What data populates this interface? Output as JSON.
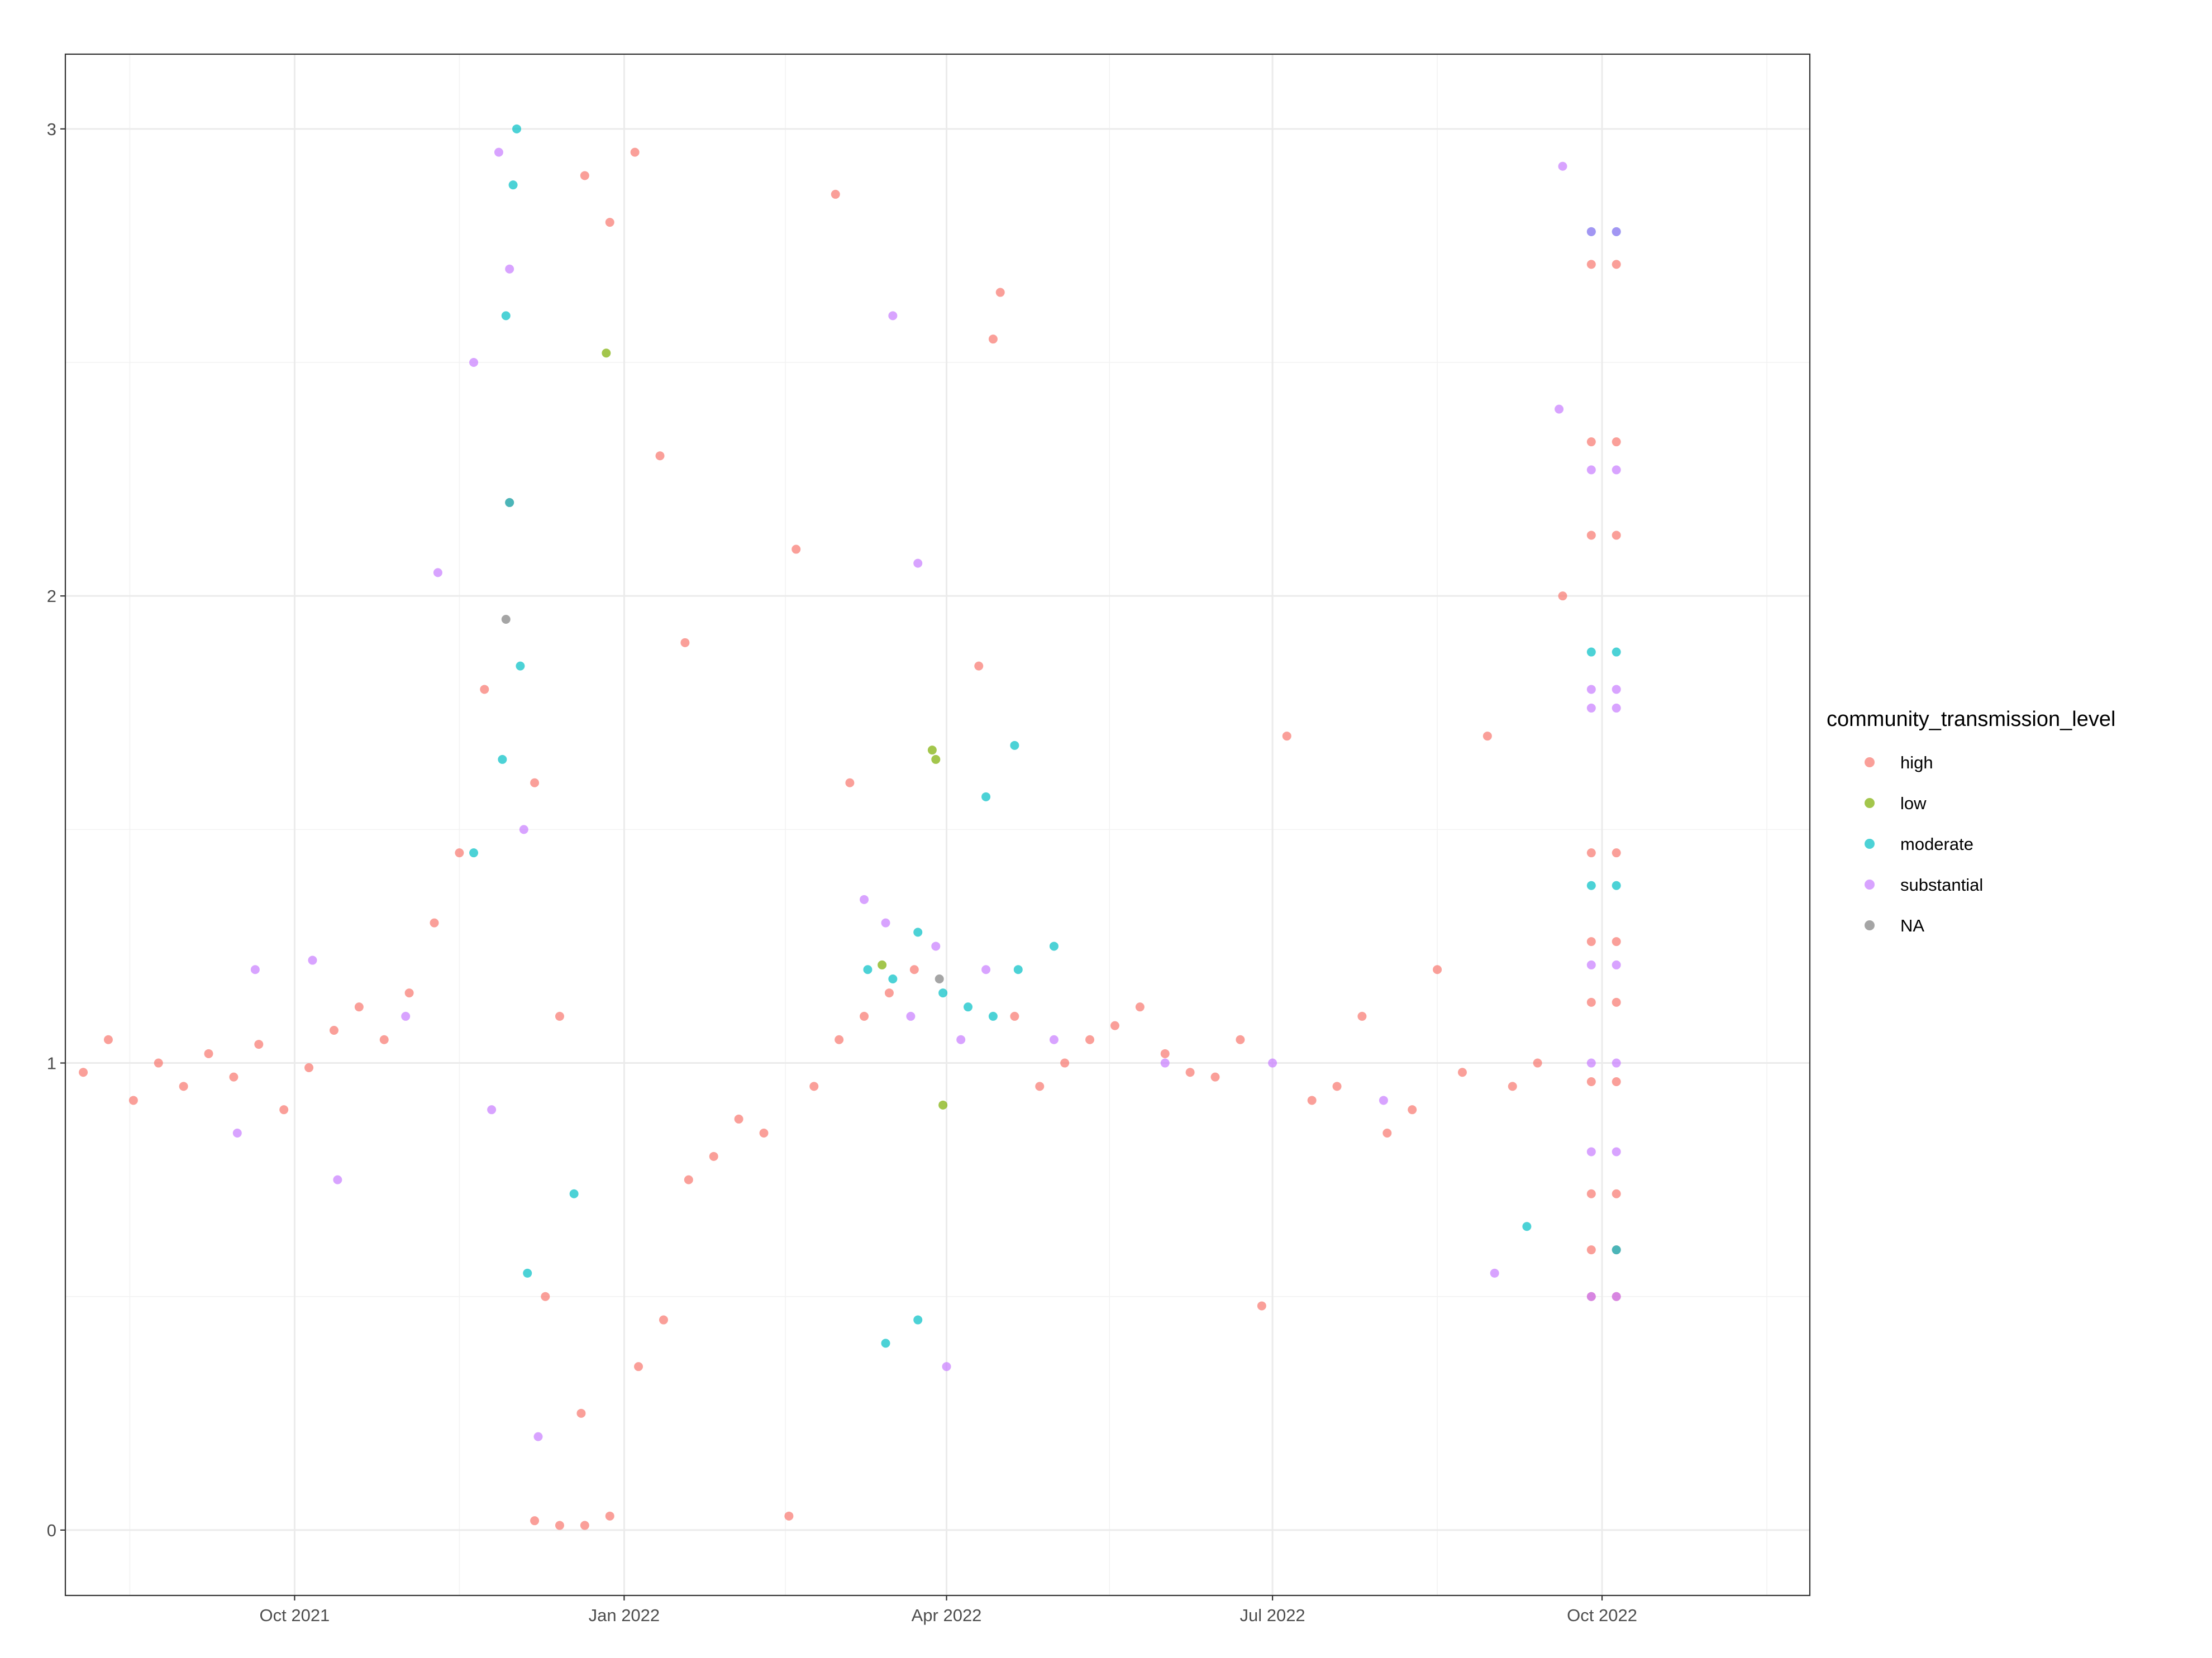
{
  "chart_data": {
    "type": "scatter",
    "title": "",
    "xlabel": "",
    "ylabel": "",
    "xlim": [
      "2021-07-29",
      "2022-11-28"
    ],
    "ylim": [
      -0.14,
      3.16
    ],
    "grid": true,
    "legend_position": "right",
    "x_ticks": [
      {
        "value": "2021-10-01",
        "label": "Oct 2021"
      },
      {
        "value": "2022-01-01",
        "label": "Jan 2022"
      },
      {
        "value": "2022-04-01",
        "label": "Apr 2022"
      },
      {
        "value": "2022-07-01",
        "label": "Jul 2022"
      },
      {
        "value": "2022-10-01",
        "label": "Oct 2022"
      }
    ],
    "y_ticks": [
      {
        "value": 0,
        "label": "0"
      },
      {
        "value": 1,
        "label": "1"
      },
      {
        "value": 2,
        "label": "2"
      },
      {
        "value": 3,
        "label": "3"
      }
    ],
    "legend": {
      "title": "community_transmission_level",
      "entries": [
        {
          "label": "high",
          "color": "#F8766D"
        },
        {
          "label": "low",
          "color": "#7CAE00"
        },
        {
          "label": "moderate",
          "color": "#00BFC4"
        },
        {
          "label": "substantial",
          "color": "#C77CFF"
        },
        {
          "label": "NA",
          "color": "#7F7F7F"
        }
      ]
    },
    "series": [
      {
        "name": "high",
        "color": "#F8766D",
        "points": [
          [
            "2021-08-03",
            0.98
          ],
          [
            "2021-08-10",
            1.05
          ],
          [
            "2021-08-17",
            0.92
          ],
          [
            "2021-08-24",
            1.0
          ],
          [
            "2021-08-31",
            0.95
          ],
          [
            "2021-09-07",
            1.02
          ],
          [
            "2021-09-14",
            0.97
          ],
          [
            "2021-09-21",
            1.04
          ],
          [
            "2021-09-28",
            0.9
          ],
          [
            "2021-10-05",
            0.99
          ],
          [
            "2021-10-12",
            1.07
          ],
          [
            "2021-10-19",
            1.12
          ],
          [
            "2021-10-26",
            1.05
          ],
          [
            "2021-11-02",
            1.15
          ],
          [
            "2021-11-09",
            1.3
          ],
          [
            "2021-11-16",
            1.45
          ],
          [
            "2021-11-23",
            1.8
          ],
          [
            "2021-11-30",
            2.2
          ],
          [
            "2021-12-07",
            1.6
          ],
          [
            "2021-12-14",
            1.1
          ],
          [
            "2021-12-21",
            2.9
          ],
          [
            "2021-12-28",
            2.8
          ],
          [
            "2022-01-04",
            2.95
          ],
          [
            "2022-01-11",
            2.3
          ],
          [
            "2022-01-18",
            1.9
          ],
          [
            "2021-12-07",
            0.02
          ],
          [
            "2021-12-14",
            0.01
          ],
          [
            "2021-12-21",
            0.01
          ],
          [
            "2021-12-28",
            0.03
          ],
          [
            "2021-12-10",
            0.5
          ],
          [
            "2021-12-20",
            0.25
          ],
          [
            "2022-01-05",
            0.35
          ],
          [
            "2022-01-12",
            0.45
          ],
          [
            "2022-01-19",
            0.75
          ],
          [
            "2022-01-26",
            0.8
          ],
          [
            "2022-02-02",
            0.88
          ],
          [
            "2022-02-09",
            0.85
          ],
          [
            "2022-02-16",
            0.03
          ],
          [
            "2022-02-23",
            0.95
          ],
          [
            "2022-03-02",
            1.05
          ],
          [
            "2022-03-09",
            1.1
          ],
          [
            "2022-03-16",
            1.15
          ],
          [
            "2022-03-23",
            1.2
          ],
          [
            "2022-02-18",
            2.1
          ],
          [
            "2022-03-01",
            2.86
          ],
          [
            "2022-03-05",
            1.6
          ],
          [
            "2022-04-10",
            1.85
          ],
          [
            "2022-04-14",
            2.55
          ],
          [
            "2022-04-16",
            2.65
          ],
          [
            "2022-04-20",
            1.1
          ],
          [
            "2022-04-27",
            0.95
          ],
          [
            "2022-05-04",
            1.0
          ],
          [
            "2022-05-11",
            1.05
          ],
          [
            "2022-05-18",
            1.08
          ],
          [
            "2022-05-25",
            1.12
          ],
          [
            "2022-06-01",
            1.02
          ],
          [
            "2022-06-08",
            0.98
          ],
          [
            "2022-06-15",
            0.97
          ],
          [
            "2022-06-22",
            1.05
          ],
          [
            "2022-06-28",
            0.48
          ],
          [
            "2022-07-05",
            1.7
          ],
          [
            "2022-07-12",
            0.92
          ],
          [
            "2022-07-19",
            0.95
          ],
          [
            "2022-07-26",
            1.1
          ],
          [
            "2022-08-02",
            0.85
          ],
          [
            "2022-08-09",
            0.9
          ],
          [
            "2022-08-16",
            1.2
          ],
          [
            "2022-08-23",
            0.98
          ],
          [
            "2022-08-30",
            1.7
          ],
          [
            "2022-09-06",
            0.95
          ],
          [
            "2022-09-13",
            1.0
          ],
          [
            "2022-09-20",
            2.0
          ],
          [
            "2022-09-28",
            2.71
          ],
          [
            "2022-09-28",
            2.33
          ],
          [
            "2022-09-28",
            2.13
          ],
          [
            "2022-09-28",
            1.45
          ],
          [
            "2022-09-28",
            1.26
          ],
          [
            "2022-09-28",
            1.13
          ],
          [
            "2022-09-28",
            0.96
          ],
          [
            "2022-09-28",
            0.72
          ],
          [
            "2022-09-28",
            0.6
          ],
          [
            "2022-09-28",
            0.5
          ],
          [
            "2022-10-05",
            2.71
          ],
          [
            "2022-10-05",
            2.33
          ],
          [
            "2022-10-05",
            2.13
          ],
          [
            "2022-10-05",
            1.45
          ],
          [
            "2022-10-05",
            1.26
          ],
          [
            "2022-10-05",
            1.13
          ],
          [
            "2022-10-05",
            0.96
          ],
          [
            "2022-10-05",
            0.72
          ],
          [
            "2022-10-05",
            0.6
          ],
          [
            "2022-10-05",
            0.5
          ]
        ]
      },
      {
        "name": "low",
        "color": "#7CAE00",
        "points": [
          [
            "2021-12-27",
            2.52
          ],
          [
            "2022-03-14",
            1.21
          ],
          [
            "2022-03-28",
            1.67
          ],
          [
            "2022-03-29",
            1.65
          ],
          [
            "2022-03-31",
            0.91
          ]
        ]
      },
      {
        "name": "moderate",
        "color": "#00BFC4",
        "points": [
          [
            "2021-12-02",
            3.0
          ],
          [
            "2021-12-01",
            2.88
          ],
          [
            "2021-11-29",
            2.6
          ],
          [
            "2021-11-30",
            2.2
          ],
          [
            "2021-12-03",
            1.85
          ],
          [
            "2021-11-20",
            1.45
          ],
          [
            "2021-11-28",
            1.65
          ],
          [
            "2021-12-18",
            0.72
          ],
          [
            "2021-12-05",
            0.55
          ],
          [
            "2022-03-10",
            1.2
          ],
          [
            "2022-03-17",
            1.18
          ],
          [
            "2022-03-24",
            1.28
          ],
          [
            "2022-03-31",
            1.15
          ],
          [
            "2022-04-07",
            1.12
          ],
          [
            "2022-04-14",
            1.1
          ],
          [
            "2022-04-21",
            1.2
          ],
          [
            "2022-04-12",
            1.57
          ],
          [
            "2022-04-20",
            1.68
          ],
          [
            "2022-03-24",
            0.45
          ],
          [
            "2022-03-15",
            0.4
          ],
          [
            "2022-05-01",
            1.25
          ],
          [
            "2022-09-10",
            0.65
          ],
          [
            "2022-09-28",
            2.78
          ],
          [
            "2022-09-28",
            1.88
          ],
          [
            "2022-09-28",
            1.38
          ],
          [
            "2022-10-05",
            2.78
          ],
          [
            "2022-10-05",
            1.88
          ],
          [
            "2022-10-05",
            1.38
          ],
          [
            "2022-10-05",
            0.6
          ]
        ]
      },
      {
        "name": "substantial",
        "color": "#C77CFF",
        "points": [
          [
            "2021-09-15",
            0.85
          ],
          [
            "2021-09-20",
            1.2
          ],
          [
            "2021-10-06",
            1.22
          ],
          [
            "2021-10-13",
            0.75
          ],
          [
            "2021-11-01",
            1.1
          ],
          [
            "2021-11-10",
            2.05
          ],
          [
            "2021-11-20",
            2.5
          ],
          [
            "2021-11-27",
            2.95
          ],
          [
            "2021-11-30",
            2.7
          ],
          [
            "2021-12-04",
            1.5
          ],
          [
            "2021-11-25",
            0.9
          ],
          [
            "2021-12-08",
            0.2
          ],
          [
            "2022-03-09",
            1.35
          ],
          [
            "2022-03-17",
            2.6
          ],
          [
            "2022-03-24",
            2.07
          ],
          [
            "2022-03-15",
            1.3
          ],
          [
            "2022-03-22",
            1.1
          ],
          [
            "2022-03-29",
            1.25
          ],
          [
            "2022-04-05",
            1.05
          ],
          [
            "2022-04-01",
            0.35
          ],
          [
            "2022-04-12",
            1.2
          ],
          [
            "2022-05-01",
            1.05
          ],
          [
            "2022-06-01",
            1.0
          ],
          [
            "2022-07-01",
            1.0
          ],
          [
            "2022-08-01",
            0.92
          ],
          [
            "2022-09-01",
            0.55
          ],
          [
            "2022-09-20",
            2.92
          ],
          [
            "2022-09-19",
            2.4
          ],
          [
            "2022-09-28",
            2.78
          ],
          [
            "2022-09-28",
            2.27
          ],
          [
            "2022-09-28",
            1.8
          ],
          [
            "2022-09-28",
            1.76
          ],
          [
            "2022-09-28",
            1.21
          ],
          [
            "2022-09-28",
            1.0
          ],
          [
            "2022-09-28",
            0.81
          ],
          [
            "2022-09-28",
            0.5
          ],
          [
            "2022-10-05",
            2.78
          ],
          [
            "2022-10-05",
            2.27
          ],
          [
            "2022-10-05",
            1.8
          ],
          [
            "2022-10-05",
            1.76
          ],
          [
            "2022-10-05",
            1.21
          ],
          [
            "2022-10-05",
            1.0
          ],
          [
            "2022-10-05",
            0.81
          ],
          [
            "2022-10-05",
            0.5
          ]
        ]
      },
      {
        "name": "NA",
        "color": "#7F7F7F",
        "points": [
          [
            "2021-11-29",
            1.95
          ],
          [
            "2022-03-30",
            1.18
          ]
        ]
      }
    ]
  }
}
